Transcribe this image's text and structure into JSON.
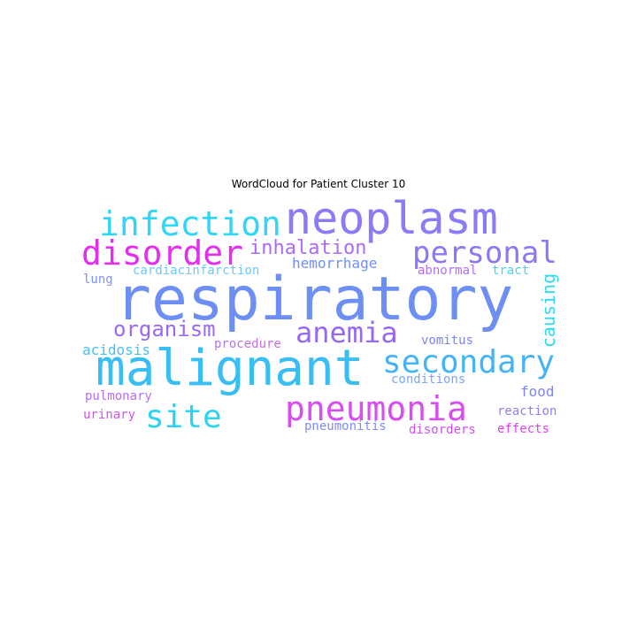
{
  "chart_data": {
    "type": "wordcloud",
    "title": "WordCloud for Patient Cluster 10",
    "words": [
      {
        "text": "respiratory",
        "color": "#6d8ff5",
        "size": 68
      },
      {
        "text": "malignant",
        "color": "#39bdf5",
        "size": 56
      },
      {
        "text": "neoplasm",
        "color": "#8a7cf5",
        "size": 50
      },
      {
        "text": "infection",
        "color": "#2fd6f5",
        "size": 38
      },
      {
        "text": "pneumonia",
        "color": "#d84cf2",
        "size": 38
      },
      {
        "text": "disorder",
        "color": "#e52df0",
        "size": 38
      },
      {
        "text": "secondary",
        "color": "#45b4f4",
        "size": 36
      },
      {
        "text": "personal",
        "color": "#8e76f4",
        "size": 34
      },
      {
        "text": "site",
        "color": "#2cd3f5",
        "size": 36
      },
      {
        "text": "anemia",
        "color": "#9668f4",
        "size": 32
      },
      {
        "text": "organism",
        "color": "#9b68f4",
        "size": 24
      },
      {
        "text": "inhalation",
        "color": "#a96cf3",
        "size": 22
      },
      {
        "text": "causing",
        "color": "#2cd8f5",
        "size": 20
      },
      {
        "text": "hemorrhage",
        "color": "#6f8ef5",
        "size": 16
      },
      {
        "text": "acidosis",
        "color": "#46c0f5",
        "size": 16
      },
      {
        "text": "food",
        "color": "#7f85f4",
        "size": 16
      },
      {
        "text": "cardiacinfarction",
        "color": "#6cc8f5",
        "size": 14
      },
      {
        "text": "abnormal",
        "color": "#b46ef3",
        "size": 14
      },
      {
        "text": "tract",
        "color": "#47d2f5",
        "size": 14
      },
      {
        "text": "lung",
        "color": "#7c93f4",
        "size": 14
      },
      {
        "text": "procedure",
        "color": "#c06ef3",
        "size": 14
      },
      {
        "text": "vomitus",
        "color": "#7d82f4",
        "size": 14
      },
      {
        "text": "conditions",
        "color": "#7da5f5",
        "size": 14
      },
      {
        "text": "pulmonary",
        "color": "#b86ef3",
        "size": 14
      },
      {
        "text": "reaction",
        "color": "#8e7ff4",
        "size": 14
      },
      {
        "text": "urinary",
        "color": "#d552f2",
        "size": 14
      },
      {
        "text": "pneumonitis",
        "color": "#7f8cf4",
        "size": 14
      },
      {
        "text": "disorders",
        "color": "#d04ff2",
        "size": 14
      },
      {
        "text": "effects",
        "color": "#e33ff1",
        "size": 14
      }
    ]
  }
}
